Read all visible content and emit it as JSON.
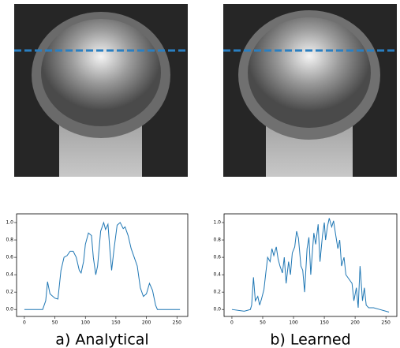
{
  "chart_data": [
    {
      "type": "line",
      "caption": "a) Analytical",
      "color": "#1f77b4",
      "x": [
        0,
        10,
        20,
        30,
        35,
        38,
        42,
        50,
        55,
        60,
        65,
        70,
        75,
        80,
        85,
        90,
        93,
        97,
        100,
        105,
        110,
        113,
        117,
        120,
        125,
        130,
        133,
        137,
        140,
        143,
        147,
        152,
        157,
        162,
        165,
        170,
        175,
        180,
        185,
        190,
        195,
        200,
        205,
        210,
        215,
        218,
        230,
        240,
        255
      ],
      "values": [
        0,
        0,
        0,
        0,
        0.1,
        0.32,
        0.18,
        0.13,
        0.12,
        0.45,
        0.6,
        0.62,
        0.67,
        0.67,
        0.6,
        0.45,
        0.42,
        0.55,
        0.75,
        0.88,
        0.85,
        0.6,
        0.4,
        0.5,
        0.9,
        1.0,
        0.92,
        0.98,
        0.7,
        0.45,
        0.7,
        0.97,
        1.0,
        0.93,
        0.95,
        0.85,
        0.7,
        0.6,
        0.5,
        0.25,
        0.15,
        0.18,
        0.3,
        0.22,
        0.05,
        0,
        0,
        0,
        0
      ],
      "xlim": [
        -12.75,
        267.75
      ],
      "ylim": [
        -0.08,
        1.1
      ],
      "xticks": [
        0,
        50,
        100,
        150,
        200,
        250
      ],
      "yticks": [
        {
          "value": 0,
          "label": "0.0"
        },
        0.2,
        0.4,
        0.6,
        0.8,
        {
          "value": 1,
          "label": "1.0"
        }
      ]
    },
    {
      "type": "line",
      "caption": "b) Learned",
      "color": "#1f77b4",
      "x": [
        0,
        20,
        30,
        32,
        35,
        38,
        42,
        45,
        48,
        52,
        55,
        58,
        62,
        65,
        68,
        72,
        75,
        78,
        82,
        85,
        88,
        92,
        95,
        98,
        102,
        105,
        108,
        112,
        115,
        118,
        122,
        125,
        128,
        130,
        133,
        136,
        140,
        143,
        147,
        150,
        152,
        155,
        158,
        162,
        165,
        168,
        172,
        175,
        178,
        182,
        185,
        190,
        195,
        198,
        202,
        205,
        208,
        212,
        215,
        218,
        222,
        230,
        240,
        250,
        255
      ],
      "values": [
        0,
        -0.02,
        0,
        0.05,
        0.37,
        0.1,
        0.15,
        0.05,
        0.12,
        0.23,
        0.42,
        0.6,
        0.55,
        0.7,
        0.62,
        0.72,
        0.58,
        0.5,
        0.42,
        0.6,
        0.3,
        0.55,
        0.4,
        0.65,
        0.72,
        0.9,
        0.82,
        0.5,
        0.45,
        0.2,
        0.7,
        0.83,
        0.4,
        0.6,
        0.88,
        0.75,
        0.98,
        0.55,
        0.85,
        1.0,
        0.8,
        0.95,
        1.05,
        0.95,
        1.02,
        0.88,
        0.7,
        0.8,
        0.5,
        0.6,
        0.4,
        0.35,
        0.3,
        0.1,
        0.25,
        0.02,
        0.5,
        0.1,
        0.25,
        0.05,
        0.02,
        0.02,
        0,
        -0.02,
        -0.03
      ],
      "xlim": [
        -12.75,
        267.75
      ],
      "ylim": [
        -0.08,
        1.1
      ],
      "xticks": [
        0,
        50,
        100,
        150,
        200,
        250
      ],
      "yticks": [
        {
          "value": 0,
          "label": "0.0"
        },
        0.2,
        0.4,
        0.6,
        0.8,
        {
          "value": 1,
          "label": "1.0"
        }
      ]
    }
  ]
}
